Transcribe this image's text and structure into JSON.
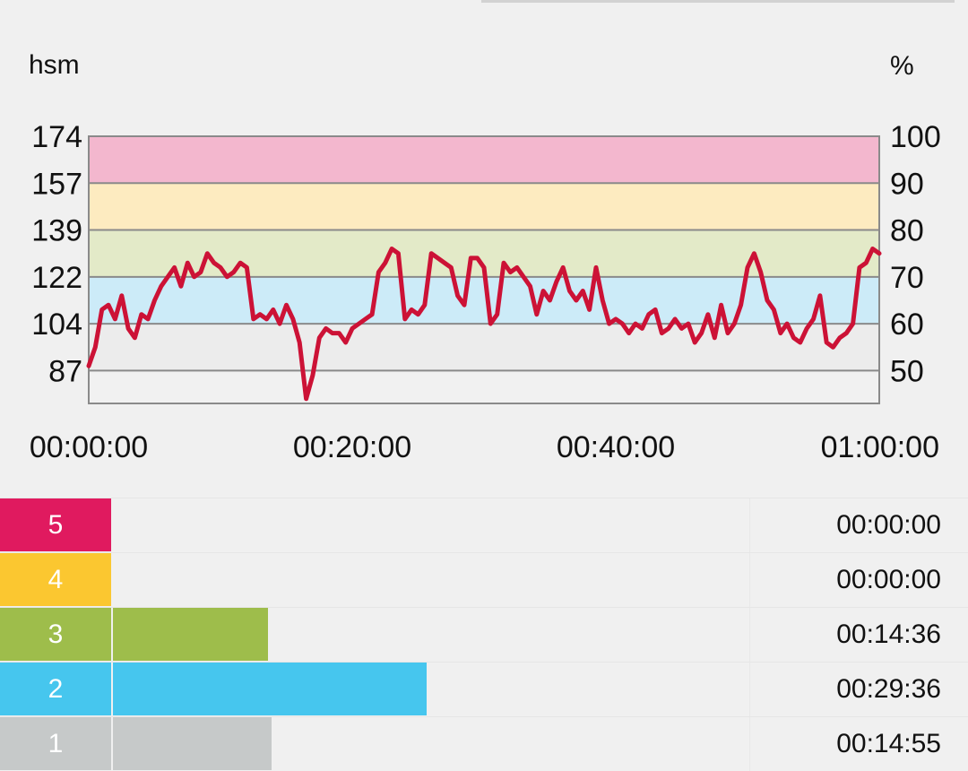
{
  "chart_data": {
    "type": "line",
    "left_axis_unit": "hsm",
    "right_axis_unit": "%",
    "left_ticks": [
      "174",
      "157",
      "139",
      "122",
      "104",
      "87"
    ],
    "right_ticks": [
      "100",
      "90",
      "80",
      "70",
      "60",
      "50"
    ],
    "x_ticks": [
      "00:00:00",
      "00:20:00",
      "00:40:00",
      "01:00:00"
    ],
    "x_range_minutes": [
      0,
      60
    ],
    "y_range_percent": [
      43,
      100
    ],
    "zone_bands": [
      {
        "from": 90,
        "to": 100,
        "color": "#f3b7ce"
      },
      {
        "from": 80,
        "to": 90,
        "color": "#fdebc0"
      },
      {
        "from": 70,
        "to": 80,
        "color": "#e3eac8"
      },
      {
        "from": 60,
        "to": 70,
        "color": "#ccebf8"
      },
      {
        "from": 50,
        "to": 60,
        "color": "#ececec"
      }
    ],
    "line_color": "#cc1236",
    "series": [
      {
        "x": [
          0,
          0.5,
          1,
          1.5,
          2,
          2.5,
          3,
          3.5,
          4,
          4.5,
          5,
          5.5,
          6,
          6.5,
          7,
          7.5,
          8,
          8.5,
          9,
          9.5,
          10,
          10.5,
          11,
          11.5,
          12,
          12.5,
          13,
          13.5,
          14,
          14.5,
          15,
          15.5,
          16,
          16.5,
          17,
          17.5,
          18,
          18.5,
          19,
          19.5,
          20,
          20.5,
          21,
          21.5,
          22,
          22.5,
          23,
          23.5,
          24,
          24.5,
          25,
          25.5,
          26,
          26.5,
          27,
          27.5,
          28,
          28.5,
          29,
          29.5,
          30,
          30.5,
          31,
          31.5,
          32,
          32.5,
          33,
          33.5,
          34,
          34.5,
          35,
          35.5,
          36,
          36.5,
          37,
          37.5,
          38,
          38.5,
          39,
          39.5,
          40,
          40.5,
          41,
          41.5,
          42,
          42.5,
          43,
          43.5,
          44,
          44.5,
          45,
          45.5,
          46,
          46.5,
          47,
          47.5,
          48,
          48.5,
          49,
          49.5,
          50,
          50.5,
          51,
          51.5,
          52,
          52.5,
          53,
          53.5,
          54,
          54.5,
          55,
          55.5,
          56,
          56.5,
          57,
          57.5,
          58,
          58.5,
          59,
          59.5,
          60
        ],
        "y": [
          51,
          55,
          63,
          64,
          61,
          66,
          59,
          57,
          62,
          61,
          65,
          68,
          70,
          72,
          68,
          73,
          70,
          71,
          75,
          73,
          72,
          70,
          71,
          73,
          72,
          61,
          62,
          61,
          63,
          60,
          64,
          61,
          56,
          44,
          49,
          57,
          59,
          58,
          58,
          56,
          59,
          60,
          61,
          62,
          71,
          73,
          76,
          75,
          61,
          63,
          62,
          64,
          75,
          74,
          73,
          72,
          66,
          64,
          74,
          74,
          72,
          60,
          62,
          73,
          71,
          72,
          70,
          68,
          62,
          67,
          65,
          69,
          72,
          67,
          65,
          67,
          63,
          72,
          65,
          60,
          61,
          60,
          58,
          60,
          59,
          62,
          63,
          58,
          59,
          61,
          59,
          60,
          56,
          58,
          62,
          57,
          64,
          58,
          60,
          64,
          72,
          75,
          71,
          65,
          63,
          58,
          60,
          57,
          56,
          59,
          61,
          66,
          56,
          55,
          57,
          58,
          60,
          72,
          73,
          76,
          75
        ]
      }
    ]
  },
  "zones": [
    {
      "label": "5",
      "time": "00:00:00",
      "color": "#e01a5f",
      "bar_color": "#e01a5f",
      "fraction": 0.0
    },
    {
      "label": "4",
      "time": "00:00:00",
      "color": "#fbc730",
      "bar_color": "#fbc730",
      "fraction": 0.0
    },
    {
      "label": "3",
      "time": "00:14:36",
      "color": "#9ebd4b",
      "bar_color": "#9ebd4b",
      "fraction": 0.2433
    },
    {
      "label": "2",
      "time": "00:29:36",
      "color": "#46c6ee",
      "bar_color": "#46c6ee",
      "fraction": 0.4933
    },
    {
      "label": "1",
      "time": "00:14:55",
      "color": "#c6c9c9",
      "bar_color": "#c6c9c9",
      "fraction": 0.2486
    }
  ]
}
